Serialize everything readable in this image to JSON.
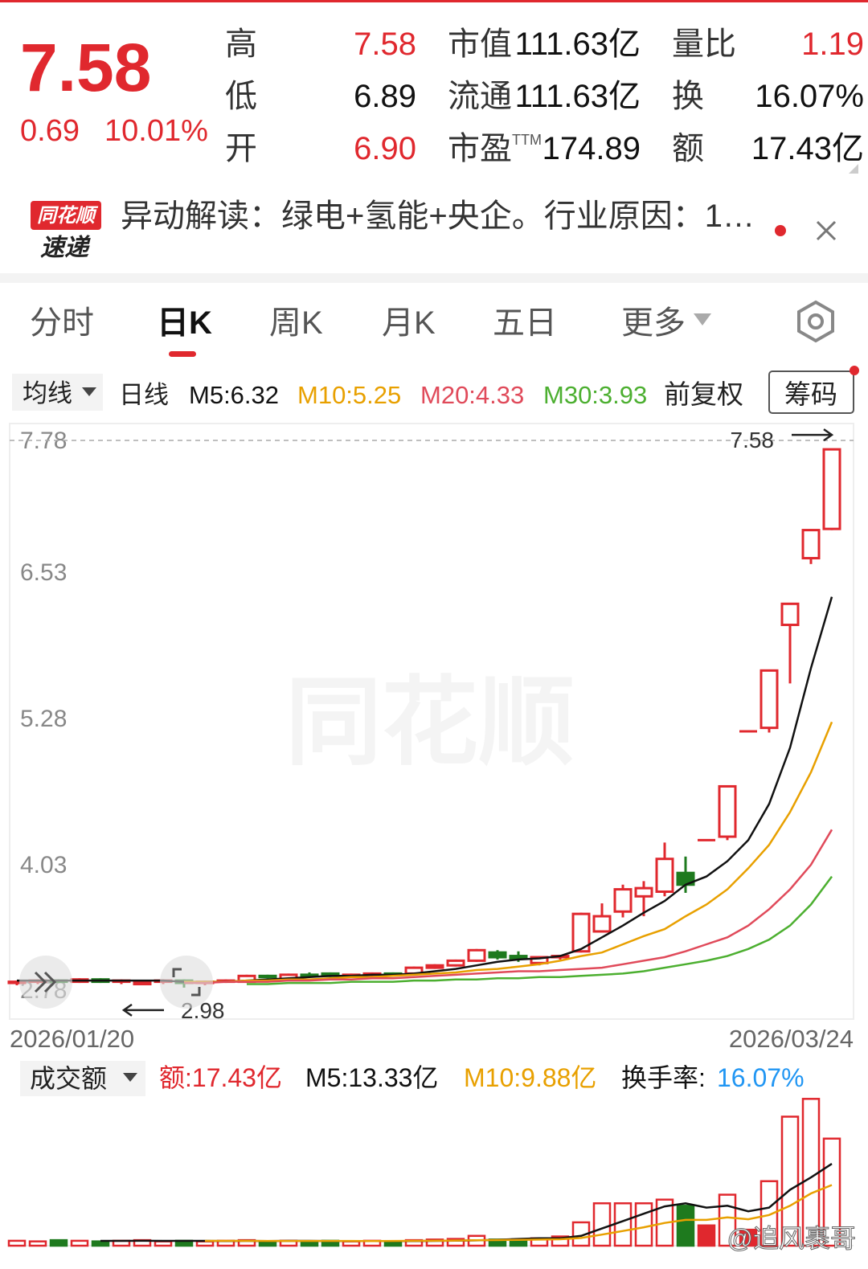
{
  "quote": {
    "price": "7.58",
    "change": "0.69",
    "change_pct": "10.01%",
    "stats": [
      [
        {
          "label": "高",
          "value": "7.58"
        },
        {
          "label": "市值",
          "value": "111.63亿"
        },
        {
          "label": "量比",
          "value": "1.19"
        }
      ],
      [
        {
          "label": "低",
          "value": "6.89"
        },
        {
          "label": "流通",
          "value": "111.63亿"
        },
        {
          "label": "换",
          "value": "16.07%"
        }
      ],
      [
        {
          "label": "开",
          "value": "6.90"
        },
        {
          "label": "市盈",
          "label_sup": "TTM",
          "value": "174.89"
        },
        {
          "label": "额",
          "value": "17.43亿"
        }
      ]
    ]
  },
  "news": {
    "badge_top": "同花顺",
    "badge_bottom": "速递",
    "text": "异动解读：绿电+氢能+央企。行业原因：1…"
  },
  "tabs": {
    "items": [
      "分时",
      "日K",
      "周K",
      "月K",
      "五日",
      "更多"
    ],
    "active": 1
  },
  "controls": {
    "ma_menu": "均线",
    "period": "日线",
    "adjust": "前复权",
    "chips": "筹码",
    "volume_menu": "成交额"
  },
  "watermark": "@追风裹哥",
  "brand_watermark": "同花顺",
  "chart_data": [
    {
      "type": "candlestick",
      "categories": [
        "2026/01/20",
        null,
        null,
        null,
        null,
        null,
        null,
        null,
        null,
        null,
        null,
        null,
        null,
        null,
        null,
        null,
        null,
        null,
        null,
        null,
        null,
        null,
        null,
        null,
        null,
        null,
        null,
        null,
        null,
        null,
        null,
        null,
        null,
        null,
        null,
        null,
        null,
        null,
        null,
        "2026/03/24"
      ],
      "open": [
        3.02,
        3.03,
        3.04,
        3.03,
        3.05,
        3.03,
        3.01,
        3.03,
        3.04,
        3.02,
        3.03,
        3.03,
        3.08,
        3.05,
        3.09,
        3.1,
        3.08,
        3.09,
        3.1,
        3.1,
        3.15,
        3.17,
        3.21,
        3.28,
        3.25,
        3.19,
        3.24,
        3.29,
        3.46,
        3.63,
        3.76,
        3.8,
        3.96,
        4.24,
        4.27,
        5.17,
        5.2,
        6.08,
        6.65,
        6.9
      ],
      "high": [
        3.04,
        3.05,
        3.05,
        3.06,
        3.06,
        3.05,
        3.04,
        3.05,
        3.05,
        3.04,
        3.05,
        3.09,
        3.09,
        3.1,
        3.11,
        3.11,
        3.1,
        3.11,
        3.11,
        3.16,
        3.18,
        3.22,
        3.31,
        3.3,
        3.29,
        3.25,
        3.26,
        3.62,
        3.7,
        3.86,
        3.89,
        4.22,
        4.1,
        4.24,
        4.7,
        5.17,
        5.69,
        6.26,
        6.89,
        7.58
      ],
      "low": [
        3.0,
        3.01,
        3.02,
        3.02,
        3.02,
        3.01,
        3.0,
        3.01,
        2.98,
        3.0,
        3.02,
        3.02,
        3.06,
        3.04,
        3.07,
        3.07,
        3.07,
        3.08,
        3.08,
        3.09,
        3.14,
        3.16,
        3.2,
        3.22,
        3.2,
        3.17,
        3.22,
        3.28,
        3.45,
        3.58,
        3.59,
        3.76,
        3.79,
        4.24,
        4.24,
        5.17,
        5.16,
        5.58,
        6.6,
        6.89
      ],
      "close": [
        3.03,
        3.04,
        3.03,
        3.05,
        3.03,
        3.04,
        3.03,
        3.04,
        3.02,
        3.03,
        3.04,
        3.08,
        3.07,
        3.09,
        3.08,
        3.08,
        3.09,
        3.1,
        3.09,
        3.15,
        3.17,
        3.21,
        3.3,
        3.24,
        3.23,
        3.24,
        3.25,
        3.61,
        3.59,
        3.82,
        3.83,
        4.08,
        3.86,
        4.24,
        4.7,
        5.17,
        5.69,
        6.26,
        6.89,
        7.58
      ],
      "up_color": "#e0282e",
      "down_color": "#1e7a1e",
      "ylim": [
        2.78,
        7.78
      ],
      "yticks": [
        7.78,
        6.53,
        5.28,
        4.03,
        2.78
      ],
      "annotations": [
        7.58,
        2.98
      ],
      "series": [
        {
          "name": "M5:6.32",
          "color": "#111111",
          "values": [
            3.04,
            3.04,
            3.04,
            3.04,
            3.04,
            3.04,
            3.04,
            3.04,
            3.03,
            3.03,
            3.03,
            3.04,
            3.05,
            3.06,
            3.07,
            3.08,
            3.08,
            3.09,
            3.09,
            3.1,
            3.12,
            3.14,
            3.17,
            3.2,
            3.22,
            3.23,
            3.25,
            3.31,
            3.41,
            3.51,
            3.62,
            3.72,
            3.86,
            3.93,
            4.06,
            4.24,
            4.55,
            5.03,
            5.71,
            6.32
          ]
        },
        {
          "name": "M10:5.25",
          "color": "#e8a000",
          "values": [
            null,
            null,
            null,
            null,
            null,
            null,
            null,
            null,
            3.03,
            3.03,
            3.03,
            3.04,
            3.04,
            3.05,
            3.05,
            3.06,
            3.07,
            3.07,
            3.08,
            3.09,
            3.1,
            3.11,
            3.13,
            3.14,
            3.16,
            3.18,
            3.21,
            3.25,
            3.28,
            3.35,
            3.42,
            3.48,
            3.59,
            3.69,
            3.82,
            4.0,
            4.2,
            4.48,
            4.82,
            5.25
          ]
        },
        {
          "name": "M20:4.33",
          "color": "#e04a5a",
          "values": [
            null,
            null,
            null,
            null,
            null,
            null,
            null,
            null,
            3.02,
            3.02,
            3.03,
            3.03,
            3.03,
            3.04,
            3.04,
            3.05,
            3.05,
            3.06,
            3.06,
            3.07,
            3.08,
            3.09,
            3.1,
            3.11,
            3.12,
            3.12,
            3.13,
            3.14,
            3.15,
            3.18,
            3.21,
            3.24,
            3.29,
            3.35,
            3.41,
            3.51,
            3.65,
            3.82,
            4.03,
            4.33
          ]
        },
        {
          "name": "M30:3.93",
          "color": "#4caf30",
          "values": [
            null,
            null,
            null,
            null,
            null,
            null,
            null,
            null,
            null,
            null,
            null,
            3.01,
            3.01,
            3.02,
            3.02,
            3.02,
            3.03,
            3.03,
            3.03,
            3.04,
            3.04,
            3.05,
            3.05,
            3.06,
            3.06,
            3.07,
            3.07,
            3.08,
            3.09,
            3.1,
            3.12,
            3.15,
            3.18,
            3.21,
            3.25,
            3.31,
            3.39,
            3.51,
            3.69,
            3.93
          ]
        }
      ]
    },
    {
      "type": "bar",
      "name": "额:17.43亿",
      "values": [
        0.8,
        0.7,
        0.9,
        0.8,
        0.7,
        0.8,
        0.9,
        0.7,
        0.8,
        0.7,
        0.8,
        0.9,
        0.7,
        0.8,
        0.7,
        0.8,
        0.7,
        0.8,
        0.7,
        0.9,
        1.0,
        1.1,
        1.6,
        1.0,
        0.9,
        1.2,
        1.5,
        3.8,
        6.9,
        6.9,
        6.9,
        7.5,
        6.5,
        3.3,
        8.3,
        2.6,
        10.5,
        21.0,
        23.9,
        17.43
      ],
      "ylim": [
        0,
        24.2
      ],
      "turnover_label": "换手率:",
      "turnover_value": "16.07%",
      "turnover_color": "#2196f3",
      "series": [
        {
          "name": "M5:13.33亿",
          "color": "#111111",
          "values": [
            null,
            null,
            null,
            null,
            0.78,
            0.78,
            0.8,
            0.78,
            0.78,
            0.78,
            0.76,
            0.78,
            0.76,
            0.78,
            0.78,
            0.76,
            0.76,
            0.76,
            0.74,
            0.76,
            0.78,
            0.82,
            0.86,
            0.94,
            1.1,
            1.2,
            1.2,
            1.6,
            2.8,
            4.0,
            5.2,
            6.4,
            6.9,
            6.2,
            6.5,
            5.6,
            6.2,
            9.1,
            11.1,
            13.33
          ]
        },
        {
          "name": "M10:9.88亿",
          "color": "#e8a000",
          "values": [
            null,
            null,
            null,
            null,
            null,
            null,
            null,
            null,
            null,
            0.78,
            0.78,
            0.78,
            0.77,
            0.77,
            0.77,
            0.77,
            0.77,
            0.76,
            0.77,
            0.78,
            0.8,
            0.84,
            0.88,
            0.92,
            0.95,
            1.0,
            1.05,
            1.25,
            1.8,
            2.4,
            3.0,
            3.7,
            4.2,
            4.2,
            4.6,
            4.3,
            5.0,
            6.5,
            8.5,
            9.88
          ]
        }
      ]
    }
  ]
}
